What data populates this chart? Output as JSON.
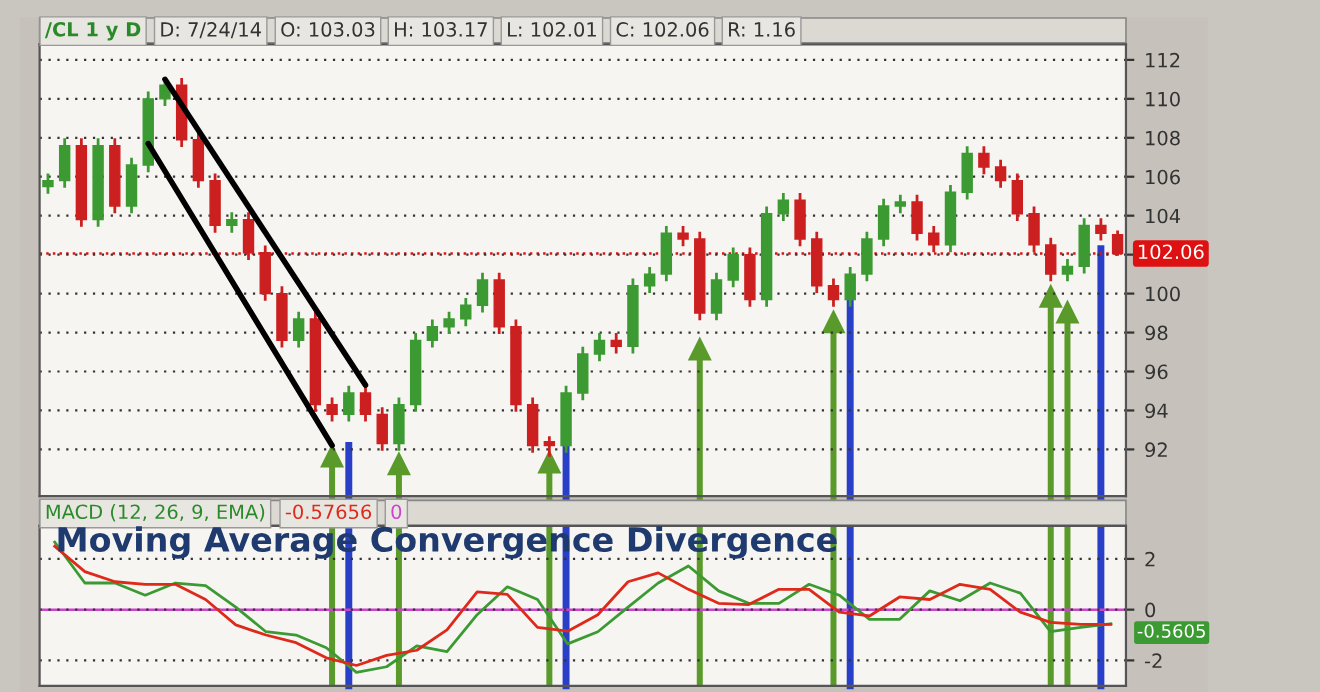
{
  "chart_data": [
    {
      "type": "candlestick",
      "title": "/CL 1 y D",
      "annotations": [
        "D: 7/24/14",
        "O: 103.03",
        "H: 103.17",
        "L: 102.01",
        "C: 102.06",
        "R: 1.16"
      ],
      "categories": [
        null,
        null,
        null,
        null,
        null,
        null,
        null,
        null,
        null,
        null,
        null,
        null,
        null,
        null,
        null,
        null,
        null,
        null,
        null,
        null,
        null,
        null,
        null,
        null,
        null,
        null,
        null,
        null,
        null,
        null,
        null,
        null,
        null,
        null,
        null,
        null,
        null,
        null,
        null,
        null,
        null,
        null,
        null,
        null,
        null,
        null,
        null,
        null,
        null,
        null,
        null,
        null,
        null,
        null,
        null,
        null,
        null,
        null,
        null,
        null,
        null,
        null,
        null,
        null,
        null
      ],
      "ohlc": [
        [
          105.5,
          106.1,
          105.2,
          105.8
        ],
        [
          105.8,
          107.9,
          105.5,
          107.6
        ],
        [
          107.6,
          107.9,
          103.5,
          103.8
        ],
        [
          103.8,
          107.9,
          103.5,
          107.6
        ],
        [
          107.6,
          107.9,
          104.2,
          104.5
        ],
        [
          104.5,
          106.9,
          104.2,
          106.6
        ],
        [
          106.6,
          110.3,
          106.3,
          110
        ],
        [
          110,
          111,
          109.7,
          110.7
        ],
        [
          110.7,
          111,
          107.6,
          107.9
        ],
        [
          107.9,
          108.2,
          105.5,
          105.8
        ],
        [
          105.8,
          106.1,
          103.2,
          103.5
        ],
        [
          103.5,
          104.1,
          103.2,
          103.8
        ],
        [
          103.8,
          104.1,
          101.8,
          102.1
        ],
        [
          102.1,
          102.4,
          99.7,
          100
        ],
        [
          100,
          100.3,
          97.3,
          97.6
        ],
        [
          97.6,
          99,
          97.3,
          98.7
        ],
        [
          98.7,
          99,
          94,
          94.3
        ],
        [
          94.3,
          94.6,
          93.5,
          93.8
        ],
        [
          93.8,
          95.2,
          93.5,
          94.9
        ],
        [
          94.9,
          95.2,
          93.5,
          93.8
        ],
        [
          93.8,
          94.1,
          92,
          92.3
        ],
        [
          92.3,
          94.6,
          92,
          94.3
        ],
        [
          94.3,
          97.9,
          94,
          97.6
        ],
        [
          97.6,
          98.6,
          97.3,
          98.3
        ],
        [
          98.3,
          99,
          98,
          98.7
        ],
        [
          98.7,
          99.7,
          98.4,
          99.4
        ],
        [
          99.4,
          101,
          99.1,
          100.7
        ],
        [
          100.7,
          101,
          98,
          98.3
        ],
        [
          98.3,
          98.6,
          94,
          94.3
        ],
        [
          94.3,
          94.6,
          91.9,
          92.2
        ],
        [
          92.4,
          92.6,
          91.7,
          92.2
        ],
        [
          92.2,
          95.2,
          91.9,
          94.9
        ],
        [
          94.9,
          97.2,
          94.6,
          96.9
        ],
        [
          96.9,
          97.9,
          96.6,
          97.6
        ],
        [
          97.6,
          97.9,
          97,
          97.3
        ],
        [
          97.3,
          100.7,
          97,
          100.4
        ],
        [
          100.4,
          101.3,
          100.1,
          101
        ],
        [
          101,
          103.4,
          100.7,
          103.1
        ],
        [
          103.1,
          103.4,
          102.5,
          102.8
        ],
        [
          102.8,
          103.1,
          98.7,
          99
        ],
        [
          99,
          101,
          98.7,
          100.7
        ],
        [
          100.7,
          102.3,
          100.4,
          102
        ],
        [
          102,
          102.3,
          99.4,
          99.7
        ],
        [
          99.7,
          104.4,
          99.4,
          104.1
        ],
        [
          104.1,
          105.1,
          103.8,
          104.8
        ],
        [
          104.8,
          105.1,
          102.5,
          102.8
        ],
        [
          102.8,
          103.1,
          100.1,
          100.4
        ],
        [
          100.4,
          100.7,
          99.4,
          99.7
        ],
        [
          99.7,
          101.3,
          99.4,
          101
        ],
        [
          101,
          103.1,
          100.7,
          102.8
        ],
        [
          102.8,
          104.8,
          102.5,
          104.5
        ],
        [
          104.5,
          105,
          104.2,
          104.7
        ],
        [
          104.7,
          105,
          102.8,
          103.1
        ],
        [
          103.1,
          103.4,
          102.2,
          102.5
        ],
        [
          102.5,
          105.5,
          102.2,
          105.2
        ],
        [
          105.2,
          107.5,
          104.9,
          107.2
        ],
        [
          107.2,
          107.5,
          106.2,
          106.5
        ],
        [
          106.5,
          106.8,
          105.5,
          105.8
        ],
        [
          105.8,
          106.1,
          103.8,
          104.1
        ],
        [
          104.1,
          104.4,
          102.2,
          102.5
        ],
        [
          102.5,
          102.8,
          100.7,
          101
        ],
        [
          101,
          101.7,
          100.7,
          101.4
        ],
        [
          101.4,
          103.8,
          101.1,
          103.5
        ],
        [
          103.5,
          103.8,
          102.8,
          103.1
        ],
        [
          103.03,
          103.17,
          102.01,
          102.06
        ]
      ],
      "colors": [
        "#3c9a32",
        "#3c9a32",
        "#cc2020",
        "#3c9a32",
        "#cc2020",
        "#3c9a32",
        "#3c9a32",
        "#3c9a32",
        "#cc2020",
        "#cc2020",
        "#cc2020",
        "#3c9a32",
        "#cc2020",
        "#cc2020",
        "#cc2020",
        "#3c9a32",
        "#cc2020",
        "#cc2020",
        "#3c9a32",
        "#cc2020",
        "#cc2020",
        "#3c9a32",
        "#3c9a32",
        "#3c9a32",
        "#3c9a32",
        "#3c9a32",
        "#3c9a32",
        "#cc2020",
        "#cc2020",
        "#cc2020",
        "#cc2020",
        "#3c9a32",
        "#3c9a32",
        "#3c9a32",
        "#cc2020",
        "#3c9a32",
        "#3c9a32",
        "#3c9a32",
        "#cc2020",
        "#cc2020",
        "#3c9a32",
        "#3c9a32",
        "#cc2020",
        "#3c9a32",
        "#3c9a32",
        "#cc2020",
        "#cc2020",
        "#cc2020",
        "#3c9a32",
        "#3c9a32",
        "#3c9a32",
        "#3c9a32",
        "#cc2020",
        "#cc2020",
        "#3c9a32",
        "#3c9a32",
        "#cc2020",
        "#cc2020",
        "#cc2020",
        "#cc2020",
        "#cc2020",
        "#3c9a32",
        "#3c9a32",
        "#cc2020",
        "#cc2020"
      ],
      "series": [
        {
          "type": "line",
          "color": "#000000",
          "values": [
            null,
            null,
            null,
            null,
            null,
            null,
            null,
            111.0,
            null,
            null,
            null,
            null,
            null,
            null,
            null,
            null,
            null,
            null,
            null,
            95.3,
            null,
            null,
            null,
            null,
            null,
            null,
            null,
            null,
            null,
            null,
            null,
            null,
            null,
            null,
            null,
            null,
            null,
            null,
            null,
            null,
            null,
            null,
            null,
            null,
            null,
            null,
            null,
            null,
            null,
            null,
            null,
            null,
            null,
            null,
            null,
            null,
            null,
            null,
            null,
            null,
            null,
            null,
            null,
            null,
            null
          ]
        },
        {
          "type": "line",
          "color": "#000000",
          "values": [
            null,
            null,
            null,
            null,
            null,
            null,
            107.7,
            null,
            null,
            null,
            null,
            null,
            null,
            null,
            null,
            null,
            null,
            92.2,
            null,
            null,
            null,
            null,
            null,
            null,
            null,
            null,
            null,
            null,
            null,
            null,
            null,
            null,
            null,
            null,
            null,
            null,
            null,
            null,
            null,
            null,
            null,
            null,
            null,
            null,
            null,
            null,
            null,
            null,
            null,
            null,
            null,
            null,
            null,
            null,
            null,
            null,
            null,
            null,
            null,
            null,
            null,
            null,
            null,
            null,
            null
          ]
        }
      ],
      "ylim": [
        89.6,
        112.8
      ],
      "yticks": [
        92,
        94,
        96,
        98,
        100,
        {
          "value": 102,
          "label": null
        },
        104,
        106,
        108,
        110,
        112
      ],
      "ref_lines": [
        {
          "axis": "y",
          "value": 102.06,
          "label": "102.06",
          "color": "#dd1111",
          "line_style": "dotted"
        }
      ],
      "grid": "y",
      "legend": false,
      "tick_labels": "y"
    },
    {
      "type": "line",
      "title": "MACD (12, 26, 9, EMA)",
      "subtitle": "Moving Average Convergence Divergence",
      "annotations": [
        "-0.57656"
      ],
      "categories": [
        null,
        null,
        null,
        null,
        null,
        null,
        null,
        null,
        null,
        null,
        null,
        null,
        null,
        null,
        null,
        null,
        null,
        null,
        null,
        null,
        null,
        null,
        null,
        null,
        null,
        null,
        null,
        null,
        null,
        null,
        null,
        null,
        null,
        null,
        null,
        null
      ],
      "series": [
        {
          "color": "#3c9a32",
          "values": [
            2.66,
            1.05,
            1.05,
            0.57,
            1.05,
            0.95,
            0.1,
            -0.87,
            -1.0,
            -1.5,
            -2.47,
            -2.25,
            -1.43,
            -1.65,
            -0.2,
            0.9,
            0.4,
            -1.35,
            -0.87,
            0.1,
            1.05,
            1.72,
            0.74,
            0.25,
            0.25,
            1.0,
            0.57,
            -0.38,
            -0.38,
            0.74,
            0.35,
            1.05,
            0.65,
            -0.87,
            -0.7,
            -0.5605
          ],
          "value_labels": [
            null,
            null,
            null,
            null,
            null,
            null,
            null,
            null,
            null,
            null,
            null,
            null,
            null,
            null,
            null,
            null,
            null,
            null,
            null,
            null,
            null,
            null,
            null,
            null,
            null,
            null,
            null,
            null,
            null,
            null,
            null,
            null,
            null,
            null,
            null,
            "-0.5605"
          ]
        },
        {
          "color": "#dd2a1a",
          "values": [
            2.5,
            1.5,
            1.1,
            1.0,
            1.0,
            0.4,
            -0.6,
            -1.0,
            -1.3,
            -1.9,
            -2.2,
            -1.8,
            -1.6,
            -0.8,
            0.7,
            0.6,
            -0.7,
            -0.85,
            -0.2,
            1.1,
            1.45,
            0.8,
            0.25,
            0.2,
            0.8,
            0.8,
            -0.1,
            -0.25,
            0.5,
            0.4,
            1.0,
            0.8,
            -0.1,
            -0.5,
            -0.58,
            -0.58
          ]
        }
      ],
      "ylim": [
        -3.0,
        3.3
      ],
      "yticks": [
        -2,
        0,
        2
      ],
      "ref_lines": [
        {
          "axis": "y",
          "value": 0,
          "label": "0",
          "color": "#cc44cc",
          "line_style": "solid"
        }
      ],
      "grid": "y",
      "legend": false,
      "tick_labels": "y",
      "marker": "none",
      "line_style": "solid"
    }
  ]
}
